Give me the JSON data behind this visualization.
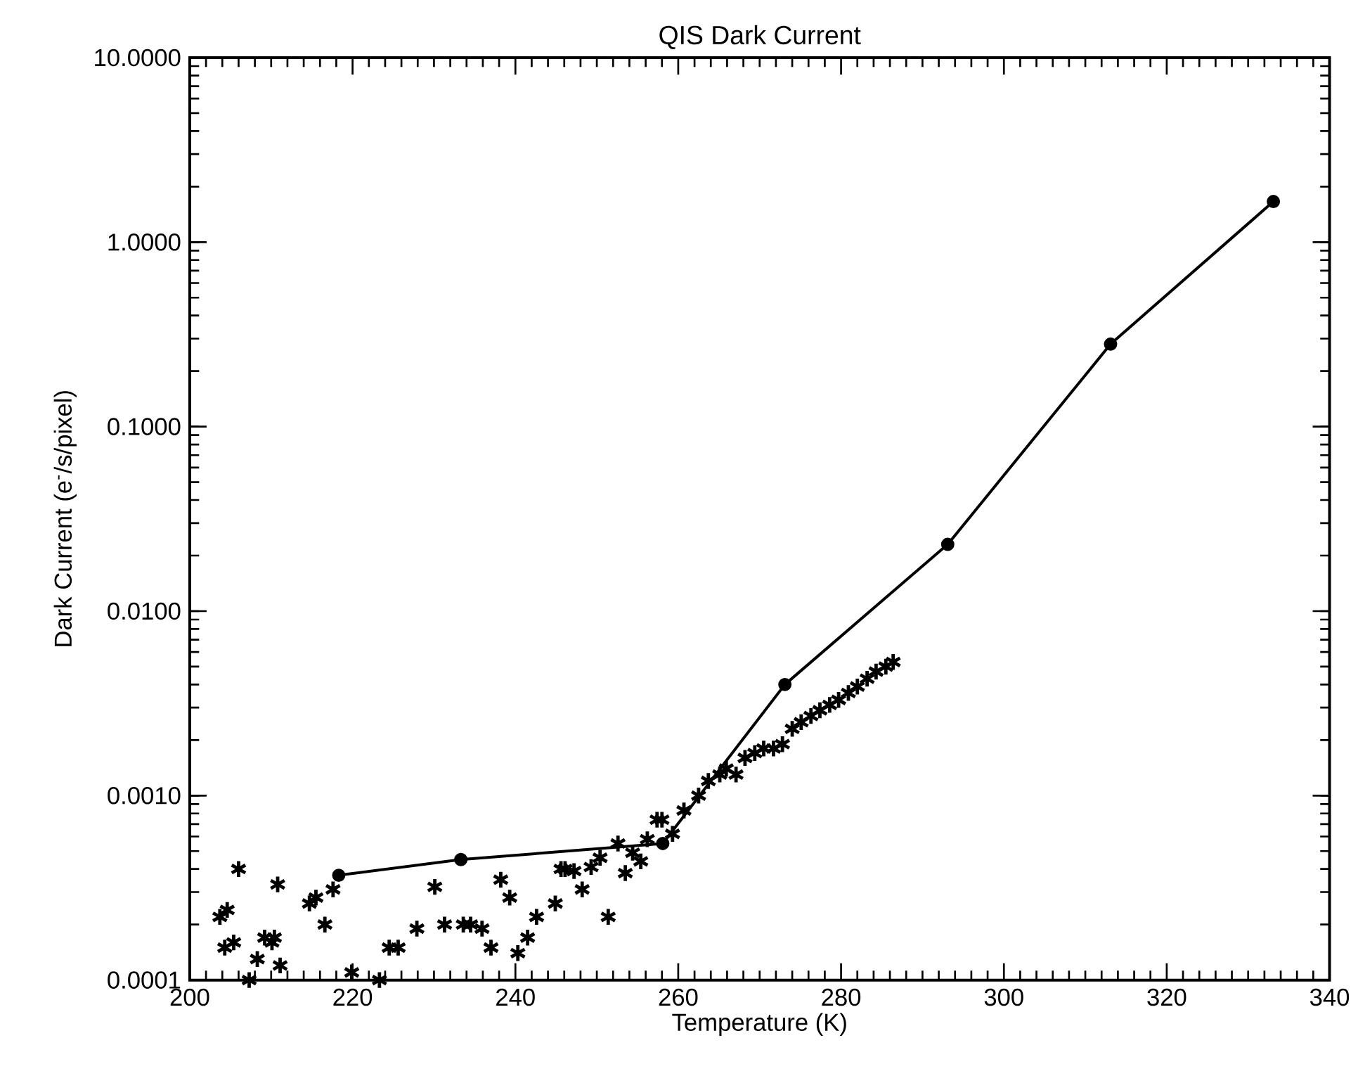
{
  "chart_data": {
    "type": "scatter",
    "title": "QIS Dark Current",
    "xlabel": "Temperature (K)",
    "ylabel": "Dark Current (e$^{-}$/s/pixel)",
    "log": "y",
    "xlim": [
      200,
      340
    ],
    "xticks": [
      200,
      220,
      240,
      260,
      280,
      300,
      320,
      340
    ],
    "ylim": [
      0.0001,
      10
    ],
    "yticks": [
      {
        "value": 0.0001,
        "label": "0.0001"
      },
      {
        "value": 0.001,
        "label": "0.0010"
      },
      {
        "value": 0.01,
        "label": "0.0100"
      },
      {
        "value": 0.1,
        "label": "0.1000"
      },
      {
        "value": 1,
        "label": "1.0000"
      },
      {
        "value": 10,
        "label": "10.0000"
      }
    ],
    "grid": false,
    "series": [
      {
        "marker": "cross",
        "color": "#000000",
        "x": [
          203.7,
          204.6,
          204.3,
          205.4,
          206.0,
          207.3,
          208.3,
          209.2,
          210.4,
          210.1,
          210.8,
          211.1,
          214.7,
          215.5,
          216.6,
          217.6,
          219.9,
          223.3,
          224.5,
          225.6,
          227.9,
          230.1,
          231.3,
          233.6,
          234.5,
          235.9,
          237.0,
          238.2,
          239.3,
          240.3,
          241.5,
          242.6,
          244.9,
          245.6,
          246.1,
          247.2,
          248.2,
          249.3,
          250.4,
          251.4,
          252.6,
          253.5,
          254.4,
          255.4,
          256.2,
          257.4,
          258.0,
          259.3,
          260.7,
          262.5,
          263.7,
          265.1,
          265.9,
          267.1,
          268.2,
          269.4,
          270.5,
          271.7,
          272.8,
          274.0,
          275.1,
          276.3,
          277.4,
          278.6,
          279.7,
          280.9,
          282.0,
          283.2,
          284.3,
          285.5,
          286.4
        ],
        "values": [
          0.00022,
          0.00024,
          0.00015,
          0.00016,
          0.0004,
          0.0001,
          0.00013,
          0.00017,
          0.00017,
          0.00016,
          0.00033,
          0.00012,
          0.00026,
          0.00028,
          0.0002,
          0.00031,
          0.00011,
          0.0001,
          0.00015,
          0.00015,
          0.00019,
          0.00032,
          0.0002,
          0.0002,
          0.0002,
          0.00019,
          0.00015,
          0.00035,
          0.00028,
          0.00014,
          0.00017,
          0.00022,
          0.00026,
          0.0004,
          0.0004,
          0.00039,
          0.00031,
          0.00041,
          0.00046,
          0.00022,
          0.00055,
          0.00038,
          0.00049,
          0.00044,
          0.00058,
          0.00074,
          0.00074,
          0.00062,
          0.00083,
          0.001,
          0.0012,
          0.0013,
          0.0014,
          0.0013,
          0.0016,
          0.0017,
          0.0018,
          0.0018,
          0.0019,
          0.0023,
          0.0025,
          0.0027,
          0.0029,
          0.0031,
          0.0033,
          0.0036,
          0.0039,
          0.0043,
          0.0047,
          0.005,
          0.0053
        ]
      },
      {
        "type": "line",
        "marker": "circle",
        "line_style": "solid",
        "color": "#000000",
        "x": [
          218.3,
          233.3,
          258.1,
          273.1,
          293.1,
          313.1,
          333.1
        ],
        "values": [
          0.00037,
          0.00045,
          0.00055,
          0.004,
          0.023,
          0.28,
          1.66
        ]
      }
    ]
  }
}
